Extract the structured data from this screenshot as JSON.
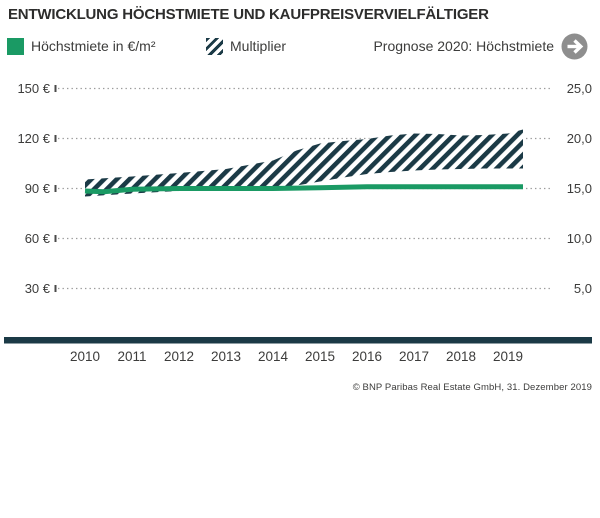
{
  "title": "ENTWICKLUNG HÖCHSTMIETE UND KAUFPREISVERVIELFÄLTIGER",
  "legend": {
    "rent_label": "Höchstmiete in €/m²",
    "multiplier_label": "Multiplier",
    "prognose_label": "Prognose 2020: Höchstmiete",
    "prognose_icon": "arrow-right-circle"
  },
  "source": "© BNP Paribas Real Estate GmbH, 31. Dezember 2019",
  "colors": {
    "green": "#1a9a64",
    "dark": "#1b3a46",
    "grid": "#9b9b9b",
    "tick": "#4a4a49",
    "text": "#3c3c3b",
    "arrow_circle": "#8e8e8e",
    "arrow_glyph": "#ffffff"
  },
  "chart_data": {
    "type": "combo-line-band",
    "title": "Entwicklung Höchstmiete und Kaufpreisvervielfältiger",
    "grid": "dotted",
    "x_years": [
      "2010",
      "2011",
      "2012",
      "2013",
      "2014",
      "2015",
      "2016",
      "2017",
      "2018",
      "2019"
    ],
    "left_axis": {
      "unit": "€/m²",
      "tick_labels": [
        "150 €",
        "120 €",
        "90 €",
        "60 €",
        "30 €"
      ],
      "tick_values": [
        150,
        120,
        90,
        60,
        30
      ],
      "range": [
        0,
        150
      ]
    },
    "right_axis": {
      "unit": "Multiplier",
      "tick_labels": [
        "25,0",
        "20,0",
        "15,0",
        "10,0",
        "5,0"
      ],
      "tick_values": [
        25,
        20,
        15,
        10,
        5
      ],
      "range": [
        0,
        25
      ]
    },
    "series": [
      {
        "name": "Höchstmiete in €/m²",
        "type": "line",
        "axis": "left",
        "x": [
          2010,
          2010.4,
          2011,
          2012,
          2013,
          2014,
          2015,
          2016,
          2017,
          2018,
          2019,
          2019.32
        ],
        "values": [
          88.5,
          88,
          89.5,
          90,
          90,
          90,
          90.5,
          91,
          91,
          91,
          91,
          91
        ]
      },
      {
        "name": "Multiplier",
        "type": "band",
        "axis": "right",
        "x": [
          2010,
          2011,
          2012,
          2013,
          2014,
          2014.5,
          2015,
          2015.5,
          2016,
          2016.5,
          2017,
          2017.5,
          2018,
          2018.5,
          2019,
          2019.32
        ],
        "upper": [
          15.9,
          16.2,
          16.55,
          16.95,
          17.8,
          18.8,
          19.5,
          19.75,
          19.95,
          20.3,
          20.5,
          20.45,
          20.3,
          20.35,
          20.5,
          20.9
        ],
        "lower": [
          14.2,
          14.5,
          14.75,
          14.9,
          15.1,
          15.3,
          15.7,
          16.1,
          16.45,
          16.65,
          16.8,
          16.9,
          16.95,
          17.0,
          17.0,
          17.0
        ]
      }
    ]
  }
}
